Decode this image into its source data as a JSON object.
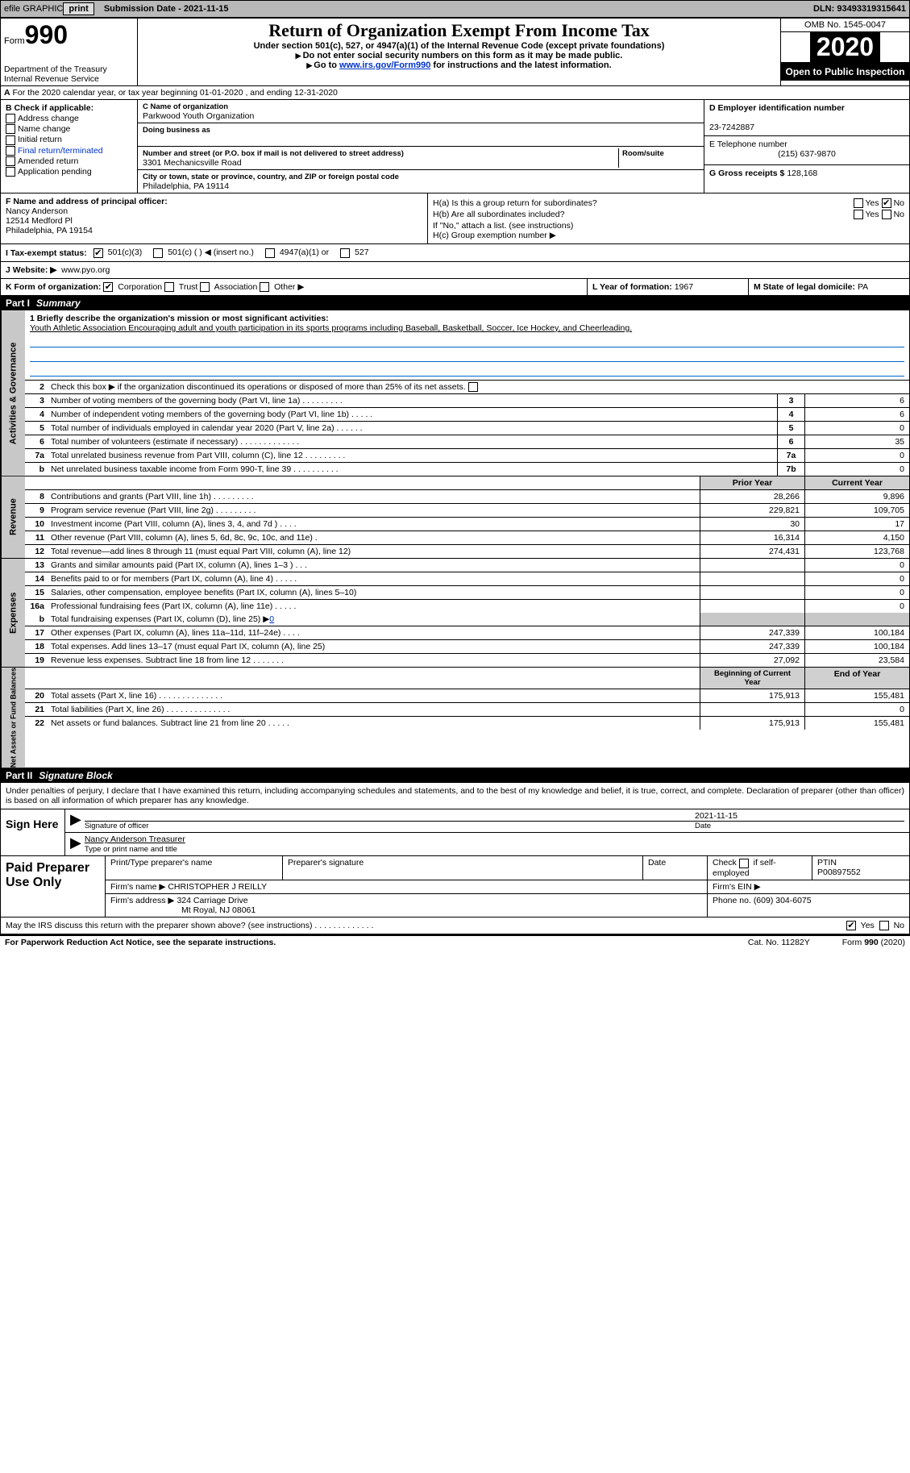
{
  "topbar": {
    "efile_label": "efile GRAPHIC",
    "print_btn": "print",
    "submission_label": "Submission Date - 2021-11-15",
    "dln": "DLN: 93493319315641"
  },
  "header": {
    "form_label": "Form",
    "form_num": "990",
    "dept1": "Department of the Treasury",
    "dept2": "Internal Revenue Service",
    "title": "Return of Organization Exempt From Income Tax",
    "subtitle": "Under section 501(c), 527, or 4947(a)(1) of the Internal Revenue Code (except private foundations)",
    "note1": "Do not enter social security numbers on this form as it may be made public.",
    "note2_pre": "Go to ",
    "note2_link": "www.irs.gov/Form990",
    "note2_post": " for instructions and the latest information.",
    "omb": "OMB No. 1545-0047",
    "year": "2020",
    "open": "Open to Public Inspection"
  },
  "section_a": "For the 2020 calendar year, or tax year beginning 01-01-2020    , and ending 12-31-2020",
  "col_b": {
    "header": "B Check if applicable:",
    "addr_change": "Address change",
    "name_change": "Name change",
    "initial": "Initial return",
    "final": "Final return/terminated",
    "amended": "Amended return",
    "app_pending": "Application pending"
  },
  "col_c": {
    "name_label": "C Name of organization",
    "name": "Parkwood Youth Organization",
    "dba_label": "Doing business as",
    "dba": "",
    "street_label": "Number and street (or P.O. box if mail is not delivered to street address)",
    "room_label": "Room/suite",
    "street": "3301 Mechanicsville Road",
    "city_label": "City or town, state or province, country, and ZIP or foreign postal code",
    "city": "Philadelphia, PA  19114"
  },
  "col_d": {
    "ein_label": "D Employer identification number",
    "ein": "23-7242887",
    "phone_label": "E Telephone number",
    "phone": "(215) 637-9870",
    "gross_label": "G Gross receipts $",
    "gross": "128,168"
  },
  "f": {
    "label": "F  Name and address of principal officer:",
    "name": "Nancy Anderson",
    "street": "12514 Medford Pl",
    "city": "Philadelphia, PA  19154"
  },
  "h": {
    "a_label": "H(a)  Is this a group return for subordinates?",
    "b_label": "H(b)  Are all subordinates included?",
    "b_note": "If \"No,\" attach a list. (see instructions)",
    "c_label": "H(c)  Group exemption number ▶",
    "yes": "Yes",
    "no": "No"
  },
  "i": {
    "label": "I  Tax-exempt status:",
    "o501c3": "501(c)(3)",
    "o501c": "501(c) (   ) ◀ (insert no.)",
    "o4947": "4947(a)(1) or",
    "o527": "527"
  },
  "j": {
    "label": "J  Website: ▶",
    "value": "www.pyo.org"
  },
  "k": {
    "label": "K Form of organization:",
    "corp": "Corporation",
    "trust": "Trust",
    "assoc": "Association",
    "other": "Other ▶",
    "l_label": "L Year of formation:",
    "l_val": "1967",
    "m_label": "M State of legal domicile:",
    "m_val": "PA"
  },
  "parts": {
    "p1": "Part I",
    "p1t": "Summary",
    "p2": "Part II",
    "p2t": "Signature Block"
  },
  "vlabels": {
    "gov": "Activities & Governance",
    "rev": "Revenue",
    "exp": "Expenses",
    "net": "Net Assets or Fund Balances"
  },
  "summary": {
    "line1_label": "1  Briefly describe the organization's mission or most significant activities:",
    "line1_text": "Youth Athletic Association Encouraging adult and youth participation in its sports programs including Baseball, Basketball, Soccer, Ice Hockey, and Cheerleading.",
    "line2": "Check this box ▶           if the organization discontinued its operations or disposed of more than 25% of its net assets.",
    "rows_gov": [
      {
        "n": "3",
        "d": "Number of voting members of the governing body (Part VI, line 1a)   .    .    .    .    .    .    .    .    .",
        "b": "3",
        "v": "6"
      },
      {
        "n": "4",
        "d": "Number of independent voting members of the governing body (Part VI, line 1b)    .    .    .    .    .",
        "b": "4",
        "v": "6"
      },
      {
        "n": "5",
        "d": "Total number of individuals employed in calendar year 2020 (Part V, line 2a)    .    .    .    .    .    .",
        "b": "5",
        "v": "0"
      },
      {
        "n": "6",
        "d": "Total number of volunteers (estimate if necessary)    .    .    .    .    .    .    .    .    .    .    .    .    .",
        "b": "6",
        "v": "35"
      },
      {
        "n": "7a",
        "d": "Total unrelated business revenue from Part VIII, column (C), line 12    .    .    .    .    .    .    .    .    .",
        "b": "7a",
        "v": "0"
      },
      {
        "n": "b",
        "d": "Net unrelated business taxable income from Form 990-T, line 39    .    .    .    .    .    .    .    .    .    .",
        "b": "7b",
        "v": "0"
      }
    ],
    "prior_h": "Prior Year",
    "curr_h": "Current Year",
    "rows_rev": [
      {
        "n": "8",
        "d": "Contributions and grants (Part VIII, line 1h)    .    .    .    .    .    .    .    .    .",
        "p": "28,266",
        "c": "9,896"
      },
      {
        "n": "9",
        "d": "Program service revenue (Part VIII, line 2g)    .    .    .    .    .    .    .    .    .",
        "p": "229,821",
        "c": "109,705"
      },
      {
        "n": "10",
        "d": "Investment income (Part VIII, column (A), lines 3, 4, and 7d )    .    .    .    .",
        "p": "30",
        "c": "17"
      },
      {
        "n": "11",
        "d": "Other revenue (Part VIII, column (A), lines 5, 6d, 8c, 9c, 10c, and 11e)    .",
        "p": "16,314",
        "c": "4,150"
      },
      {
        "n": "12",
        "d": "Total revenue—add lines 8 through 11 (must equal Part VIII, column (A), line 12)",
        "p": "274,431",
        "c": "123,768"
      }
    ],
    "rows_exp": [
      {
        "n": "13",
        "d": "Grants and similar amounts paid (Part IX, column (A), lines 1–3 )    .    .    .",
        "p": "",
        "c": "0"
      },
      {
        "n": "14",
        "d": "Benefits paid to or for members (Part IX, column (A), line 4)    .    .    .    .    .",
        "p": "",
        "c": "0"
      },
      {
        "n": "15",
        "d": "Salaries, other compensation, employee benefits (Part IX, column (A), lines 5–10)",
        "p": "",
        "c": "0"
      },
      {
        "n": "16a",
        "d": "Professional fundraising fees (Part IX, column (A), line 11e)    .    .    .    .    .",
        "p": "",
        "c": "0"
      }
    ],
    "line16b": {
      "n": "b",
      "d": "Total fundraising expenses (Part IX, column (D), line 25) ▶",
      "v": "0"
    },
    "rows_exp2": [
      {
        "n": "17",
        "d": "Other expenses (Part IX, column (A), lines 11a–11d, 11f–24e)    .    .    .    .",
        "p": "247,339",
        "c": "100,184"
      },
      {
        "n": "18",
        "d": "Total expenses. Add lines 13–17 (must equal Part IX, column (A), line 25)",
        "p": "247,339",
        "c": "100,184"
      },
      {
        "n": "19",
        "d": "Revenue less expenses. Subtract line 18 from line 12    .    .    .    .    .    .    .",
        "p": "27,092",
        "c": "23,584"
      }
    ],
    "beg_h": "Beginning of Current Year",
    "end_h": "End of Year",
    "rows_net": [
      {
        "n": "20",
        "d": "Total assets (Part X, line 16)    .    .    .    .    .    .    .    .    .    .    .    .    .    .",
        "p": "175,913",
        "c": "155,481"
      },
      {
        "n": "21",
        "d": "Total liabilities (Part X, line 26)    .    .    .    .    .    .    .    .    .    .    .    .    .    .",
        "p": "",
        "c": "0"
      },
      {
        "n": "22",
        "d": "Net assets or fund balances. Subtract line 21 from line 20    .    .    .    .    .",
        "p": "175,913",
        "c": "155,481"
      }
    ]
  },
  "part2": {
    "decl": "Under penalties of perjury, I declare that I have examined this return, including accompanying schedules and statements, and to the best of my knowledge and belief, it is true, correct, and complete. Declaration of preparer (other than officer) is based on all information of which preparer has any knowledge."
  },
  "sign": {
    "here": "Sign Here",
    "sig_label": "Signature of officer",
    "date_label": "Date",
    "date": "2021-11-15",
    "name": "Nancy Anderson  Treasurer",
    "name_label": "Type or print name and title"
  },
  "paid": {
    "title": "Paid Preparer Use Only",
    "h_name": "Print/Type preparer's name",
    "h_sig": "Preparer's signature",
    "h_date": "Date",
    "h_check": "Check         if self-employed",
    "h_ptin": "PTIN",
    "ptin": "P00897552",
    "firm_label": "Firm's name    ▶",
    "firm_name": "CHRISTOPHER J REILLY",
    "ein_label": "Firm's EIN ▶",
    "addr_label": "Firm's address ▶",
    "addr1": "324 Carriage Drive",
    "addr2": "Mt Royal, NJ  08061",
    "phone_label": "Phone no.",
    "phone": "(609) 304-6075"
  },
  "may_irs": {
    "text": "May the IRS discuss this return with the preparer shown above? (see instructions)    .    .    .    .    .    .    .    .    .    .    .    .    .",
    "yes": "Yes",
    "no": "No"
  },
  "footer": {
    "left": "For Paperwork Reduction Act Notice, see the separate instructions.",
    "mid": "Cat. No. 11282Y",
    "right_pre": "Form ",
    "right_b": "990",
    "right_post": " (2020)"
  }
}
